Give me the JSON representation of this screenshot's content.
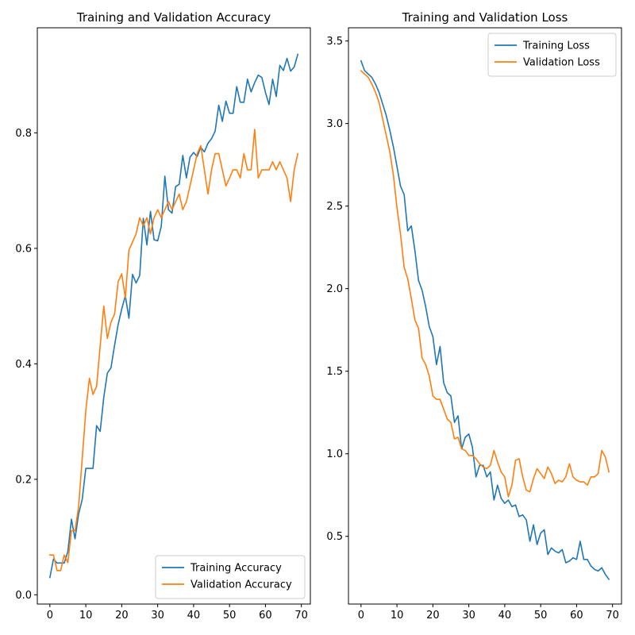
{
  "chart_data": [
    {
      "type": "line",
      "title": "Training and Validation Accuracy",
      "xlabel": "",
      "ylabel": "",
      "xlim": [
        -3.5,
        72.5
      ],
      "ylim": [
        -0.016,
        0.982
      ],
      "xticks": [
        0,
        10,
        20,
        30,
        40,
        50,
        60,
        70
      ],
      "yticks": [
        0.0,
        0.2,
        0.4,
        0.6,
        0.8
      ],
      "ytick_labels": [
        "0.0",
        "0.2",
        "0.4",
        "0.6",
        "0.8"
      ],
      "grid": false,
      "legend": "lower-right",
      "x": [
        0,
        1,
        2,
        3,
        4,
        5,
        6,
        7,
        8,
        9,
        10,
        11,
        12,
        13,
        14,
        15,
        16,
        17,
        18,
        19,
        20,
        21,
        22,
        23,
        24,
        25,
        26,
        27,
        28,
        29,
        30,
        31,
        32,
        33,
        34,
        35,
        36,
        37,
        38,
        39,
        40,
        41,
        42,
        43,
        44,
        45,
        46,
        47,
        48,
        49,
        50,
        51,
        52,
        53,
        54,
        55,
        56,
        57,
        58,
        59,
        60,
        61,
        62,
        63,
        64,
        65,
        66,
        67,
        68,
        69
      ],
      "series": [
        {
          "name": "Training Accuracy",
          "color": "#1f77b4",
          "values": [
            0.03,
            0.062,
            0.055,
            0.055,
            0.055,
            0.075,
            0.131,
            0.097,
            0.14,
            0.165,
            0.219,
            0.219,
            0.219,
            0.293,
            0.283,
            0.342,
            0.384,
            0.393,
            0.432,
            0.468,
            0.495,
            0.518,
            0.479,
            0.555,
            0.54,
            0.553,
            0.652,
            0.606,
            0.664,
            0.615,
            0.613,
            0.638,
            0.725,
            0.667,
            0.661,
            0.707,
            0.711,
            0.761,
            0.722,
            0.758,
            0.766,
            0.759,
            0.775,
            0.767,
            0.782,
            0.79,
            0.803,
            0.848,
            0.82,
            0.855,
            0.834,
            0.834,
            0.88,
            0.853,
            0.853,
            0.893,
            0.871,
            0.887,
            0.9,
            0.896,
            0.87,
            0.849,
            0.893,
            0.863,
            0.917,
            0.908,
            0.929,
            0.907,
            0.914,
            0.936
          ]
        },
        {
          "name": "Validation Accuracy",
          "color": "#ff7f0e",
          "values": [
            0.069,
            0.069,
            0.042,
            0.042,
            0.069,
            0.056,
            0.111,
            0.111,
            0.153,
            0.236,
            0.319,
            0.375,
            0.347,
            0.361,
            0.431,
            0.5,
            0.444,
            0.472,
            0.486,
            0.542,
            0.556,
            0.514,
            0.597,
            0.611,
            0.625,
            0.653,
            0.639,
            0.653,
            0.625,
            0.653,
            0.667,
            0.653,
            0.667,
            0.681,
            0.667,
            0.681,
            0.694,
            0.667,
            0.681,
            0.708,
            0.736,
            0.764,
            0.778,
            0.736,
            0.694,
            0.736,
            0.764,
            0.764,
            0.736,
            0.708,
            0.722,
            0.736,
            0.736,
            0.722,
            0.764,
            0.736,
            0.736,
            0.806,
            0.722,
            0.736,
            0.736,
            0.736,
            0.75,
            0.736,
            0.75,
            0.736,
            0.722,
            0.681,
            0.736,
            0.764
          ]
        }
      ]
    },
    {
      "type": "line",
      "title": "Training and Validation Loss",
      "xlabel": "",
      "ylabel": "",
      "xlim": [
        -3.5,
        72.5
      ],
      "ylim": [
        0.09,
        3.58
      ],
      "xticks": [
        0,
        10,
        20,
        30,
        40,
        50,
        60,
        70
      ],
      "yticks": [
        0.5,
        1.0,
        1.5,
        2.0,
        2.5,
        3.0,
        3.5
      ],
      "ytick_labels": [
        "0.5",
        "1.0",
        "1.5",
        "2.0",
        "2.5",
        "3.0",
        "3.5"
      ],
      "grid": false,
      "legend": "upper-right",
      "x": [
        0,
        1,
        2,
        3,
        4,
        5,
        6,
        7,
        8,
        9,
        10,
        11,
        12,
        13,
        14,
        15,
        16,
        17,
        18,
        19,
        20,
        21,
        22,
        23,
        24,
        25,
        26,
        27,
        28,
        29,
        30,
        31,
        32,
        33,
        34,
        35,
        36,
        37,
        38,
        39,
        40,
        41,
        42,
        43,
        44,
        45,
        46,
        47,
        48,
        49,
        50,
        51,
        52,
        53,
        54,
        55,
        56,
        57,
        58,
        59,
        60,
        61,
        62,
        63,
        64,
        65,
        66,
        67,
        68,
        69
      ],
      "series": [
        {
          "name": "Training Loss",
          "color": "#1f77b4",
          "values": [
            3.38,
            3.32,
            3.3,
            3.28,
            3.24,
            3.19,
            3.12,
            3.05,
            2.96,
            2.86,
            2.74,
            2.62,
            2.57,
            2.35,
            2.38,
            2.23,
            2.05,
            1.99,
            1.89,
            1.77,
            1.71,
            1.54,
            1.65,
            1.43,
            1.37,
            1.35,
            1.19,
            1.23,
            1.03,
            1.1,
            1.12,
            1.04,
            0.86,
            0.93,
            0.93,
            0.86,
            0.89,
            0.72,
            0.81,
            0.73,
            0.7,
            0.72,
            0.68,
            0.69,
            0.62,
            0.63,
            0.6,
            0.47,
            0.57,
            0.45,
            0.52,
            0.54,
            0.39,
            0.43,
            0.41,
            0.4,
            0.42,
            0.34,
            0.35,
            0.37,
            0.36,
            0.47,
            0.36,
            0.36,
            0.32,
            0.3,
            0.29,
            0.31,
            0.27,
            0.24
          ]
        },
        {
          "name": "Validation Loss",
          "color": "#ff7f0e",
          "values": [
            3.32,
            3.3,
            3.28,
            3.24,
            3.19,
            3.13,
            3.03,
            2.93,
            2.83,
            2.69,
            2.49,
            2.33,
            2.13,
            2.06,
            1.94,
            1.81,
            1.76,
            1.58,
            1.54,
            1.47,
            1.35,
            1.33,
            1.33,
            1.27,
            1.21,
            1.19,
            1.09,
            1.1,
            1.03,
            1.02,
            0.99,
            0.99,
            0.97,
            0.94,
            0.92,
            0.91,
            0.93,
            1.02,
            0.95,
            0.89,
            0.86,
            0.74,
            0.81,
            0.96,
            0.97,
            0.86,
            0.78,
            0.77,
            0.85,
            0.91,
            0.88,
            0.85,
            0.92,
            0.88,
            0.82,
            0.84,
            0.83,
            0.86,
            0.94,
            0.86,
            0.84,
            0.83,
            0.83,
            0.81,
            0.86,
            0.86,
            0.88,
            1.02,
            0.98,
            0.89
          ]
        }
      ]
    }
  ]
}
